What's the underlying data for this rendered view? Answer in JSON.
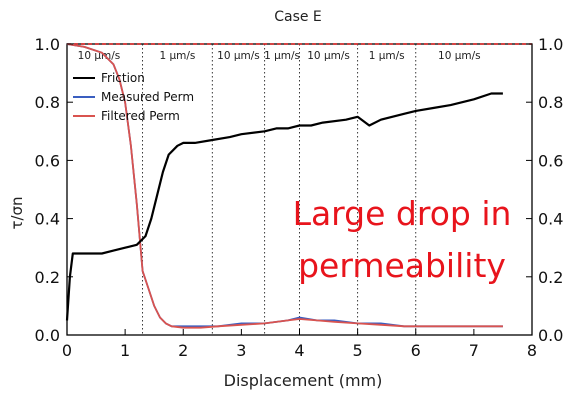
{
  "chart_data": {
    "type": "line",
    "title": "Case E",
    "xlabel": "Displacement (mm)",
    "ylabel": "τ/σn",
    "xlim": [
      0,
      8
    ],
    "ylim": [
      0,
      1.0
    ],
    "x_ticks": [
      "0",
      "1",
      "2",
      "3",
      "4",
      "5",
      "6",
      "7",
      "8"
    ],
    "y_ticks_left": [
      "0.0",
      "0.2",
      "0.4",
      "0.6",
      "0.8",
      "1.0"
    ],
    "y_ticks_right": [
      "0.0",
      "0.2",
      "0.4",
      "0.6",
      "0.8",
      "1.0"
    ],
    "grid": false,
    "legend_placement": "top-left",
    "velocity_steps": {
      "boundaries": [
        1.3,
        2.5,
        3.4,
        4.0,
        5.0,
        6.0
      ],
      "labels": [
        {
          "x": 0.55,
          "text": "10 μm/s"
        },
        {
          "x": 1.9,
          "text": "1 μm/s"
        },
        {
          "x": 2.95,
          "text": "10 μm/s"
        },
        {
          "x": 3.7,
          "text": "1 μm/s"
        },
        {
          "x": 4.5,
          "text": "10 μm/s"
        },
        {
          "x": 5.5,
          "text": "1 μm/s"
        },
        {
          "x": 6.75,
          "text": "10 μm/s"
        }
      ]
    },
    "reference_line": {
      "y": 1.0,
      "color": "#e02020"
    },
    "annotation": {
      "lines": [
        "Large drop in",
        "permeability"
      ],
      "color": "#e8141c"
    },
    "series": [
      {
        "name": "Friction",
        "color": "#000000",
        "x": [
          0.0,
          0.05,
          0.1,
          0.2,
          0.4,
          0.6,
          0.8,
          1.0,
          1.2,
          1.35,
          1.45,
          1.55,
          1.65,
          1.75,
          1.9,
          2.0,
          2.2,
          2.5,
          2.8,
          3.0,
          3.4,
          3.6,
          3.8,
          4.0,
          4.2,
          4.4,
          4.8,
          5.0,
          5.2,
          5.4,
          5.8,
          6.0,
          6.3,
          6.6,
          7.0,
          7.3,
          7.5
        ],
        "y": [
          0.05,
          0.2,
          0.28,
          0.28,
          0.28,
          0.28,
          0.29,
          0.3,
          0.31,
          0.34,
          0.4,
          0.48,
          0.56,
          0.62,
          0.65,
          0.66,
          0.66,
          0.67,
          0.68,
          0.69,
          0.7,
          0.71,
          0.71,
          0.72,
          0.72,
          0.73,
          0.74,
          0.75,
          0.72,
          0.74,
          0.76,
          0.77,
          0.78,
          0.79,
          0.81,
          0.83,
          0.83
        ]
      },
      {
        "name": "Measured Perm",
        "color": "#3a5ec0",
        "x": [
          0.0,
          0.3,
          0.6,
          0.8,
          0.9,
          1.0,
          1.1,
          1.2,
          1.3,
          1.4,
          1.5,
          1.6,
          1.7,
          1.8,
          2.0,
          2.3,
          2.6,
          3.0,
          3.4,
          3.8,
          4.0,
          4.3,
          4.6,
          5.0,
          5.4,
          5.8,
          6.2,
          6.6,
          7.0,
          7.5
        ],
        "y": [
          1.0,
          0.99,
          0.97,
          0.93,
          0.88,
          0.8,
          0.65,
          0.45,
          0.22,
          0.16,
          0.1,
          0.06,
          0.04,
          0.03,
          0.03,
          0.03,
          0.03,
          0.04,
          0.04,
          0.05,
          0.06,
          0.05,
          0.05,
          0.04,
          0.04,
          0.03,
          0.03,
          0.03,
          0.03,
          0.03
        ]
      },
      {
        "name": "Filtered Perm",
        "color": "#d9534f",
        "x": [
          0.0,
          0.3,
          0.6,
          0.8,
          0.9,
          1.0,
          1.1,
          1.2,
          1.3,
          1.4,
          1.5,
          1.6,
          1.7,
          1.8,
          2.0,
          2.3,
          2.6,
          3.0,
          3.4,
          3.8,
          4.0,
          4.3,
          4.6,
          5.0,
          5.4,
          5.8,
          6.2,
          6.6,
          7.0,
          7.5
        ],
        "y": [
          1.0,
          0.99,
          0.97,
          0.93,
          0.88,
          0.8,
          0.65,
          0.45,
          0.22,
          0.16,
          0.1,
          0.06,
          0.04,
          0.03,
          0.025,
          0.025,
          0.03,
          0.035,
          0.04,
          0.05,
          0.055,
          0.05,
          0.045,
          0.04,
          0.035,
          0.03,
          0.03,
          0.03,
          0.03,
          0.03
        ]
      }
    ]
  }
}
